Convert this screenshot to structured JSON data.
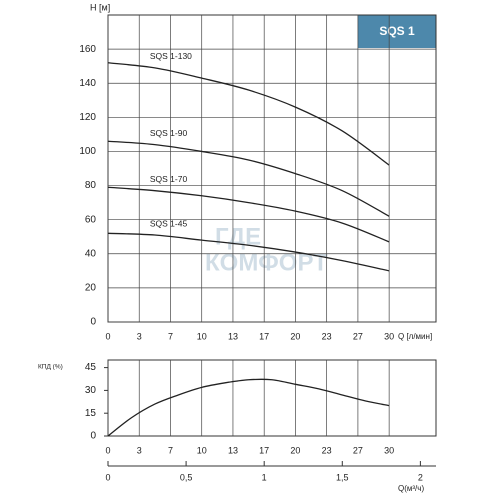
{
  "chart_data": [
    {
      "type": "line",
      "badge": "SQS 1",
      "ylabel": "H [м]",
      "xlabel": "Q [л/мин]",
      "watermark": [
        "ГДЕ",
        "КОМФОРТ"
      ],
      "x": [
        0,
        5,
        10,
        15,
        20,
        25,
        30
      ],
      "series": [
        {
          "name": "SQS 1-130",
          "color": "#222222",
          "values": [
            152,
            149,
            143,
            136,
            126,
            112,
            92
          ]
        },
        {
          "name": "SQS 1-90",
          "color": "#222222",
          "values": [
            106,
            104,
            100,
            95,
            87,
            77,
            62
          ]
        },
        {
          "name": "SQS 1-70",
          "color": "#222222",
          "values": [
            79,
            77,
            74,
            70,
            65,
            58,
            47
          ]
        },
        {
          "name": "SQS 1-45",
          "color": "#222222",
          "values": [
            52,
            51,
            48,
            45,
            41,
            36,
            30
          ]
        }
      ],
      "xlim": [
        0,
        35
      ],
      "ylim": [
        0,
        180
      ],
      "xticks": [
        0,
        {
          "value": 3.333,
          "label": "3"
        },
        {
          "value": 6.667,
          "label": "7"
        },
        10,
        {
          "value": 13.333,
          "label": "13"
        },
        {
          "value": 16.667,
          "label": "17"
        },
        20,
        {
          "value": 23.333,
          "label": "23"
        },
        {
          "value": 26.667,
          "label": "27"
        },
        30
      ],
      "yticks": [
        0,
        20,
        40,
        60,
        80,
        100,
        120,
        140,
        160
      ],
      "grid": true
    },
    {
      "type": "line",
      "ylabel": "КПД (%)",
      "xlabel": "Q(м³/ч)",
      "x": [
        0,
        2.5,
        5,
        7.5,
        10,
        12.5,
        15,
        17.5,
        20,
        22.5,
        25,
        27.5,
        30
      ],
      "series": [
        {
          "color": "#222222",
          "values": [
            0,
            12,
            21,
            27,
            32,
            35,
            37,
            37,
            34,
            31,
            27,
            23,
            20
          ]
        }
      ],
      "xlim": [
        0,
        35
      ],
      "ylim": [
        0,
        50
      ],
      "xticks": [
        0,
        {
          "value": 3.333,
          "label": "3"
        },
        {
          "value": 6.667,
          "label": "7"
        },
        10,
        {
          "value": 13.333,
          "label": "13"
        },
        {
          "value": 16.667,
          "label": "17"
        },
        20,
        {
          "value": 23.333,
          "label": "23"
        },
        {
          "value": 26.667,
          "label": "27"
        },
        30
      ],
      "yticks": [
        0,
        15,
        30,
        45
      ],
      "x2lim": [
        0,
        2.1
      ],
      "x2ticks": [
        0,
        {
          "value": 0.5,
          "label": "0,5"
        },
        1,
        {
          "value": 1.5,
          "label": "1,5"
        },
        2
      ],
      "grid": true
    }
  ]
}
